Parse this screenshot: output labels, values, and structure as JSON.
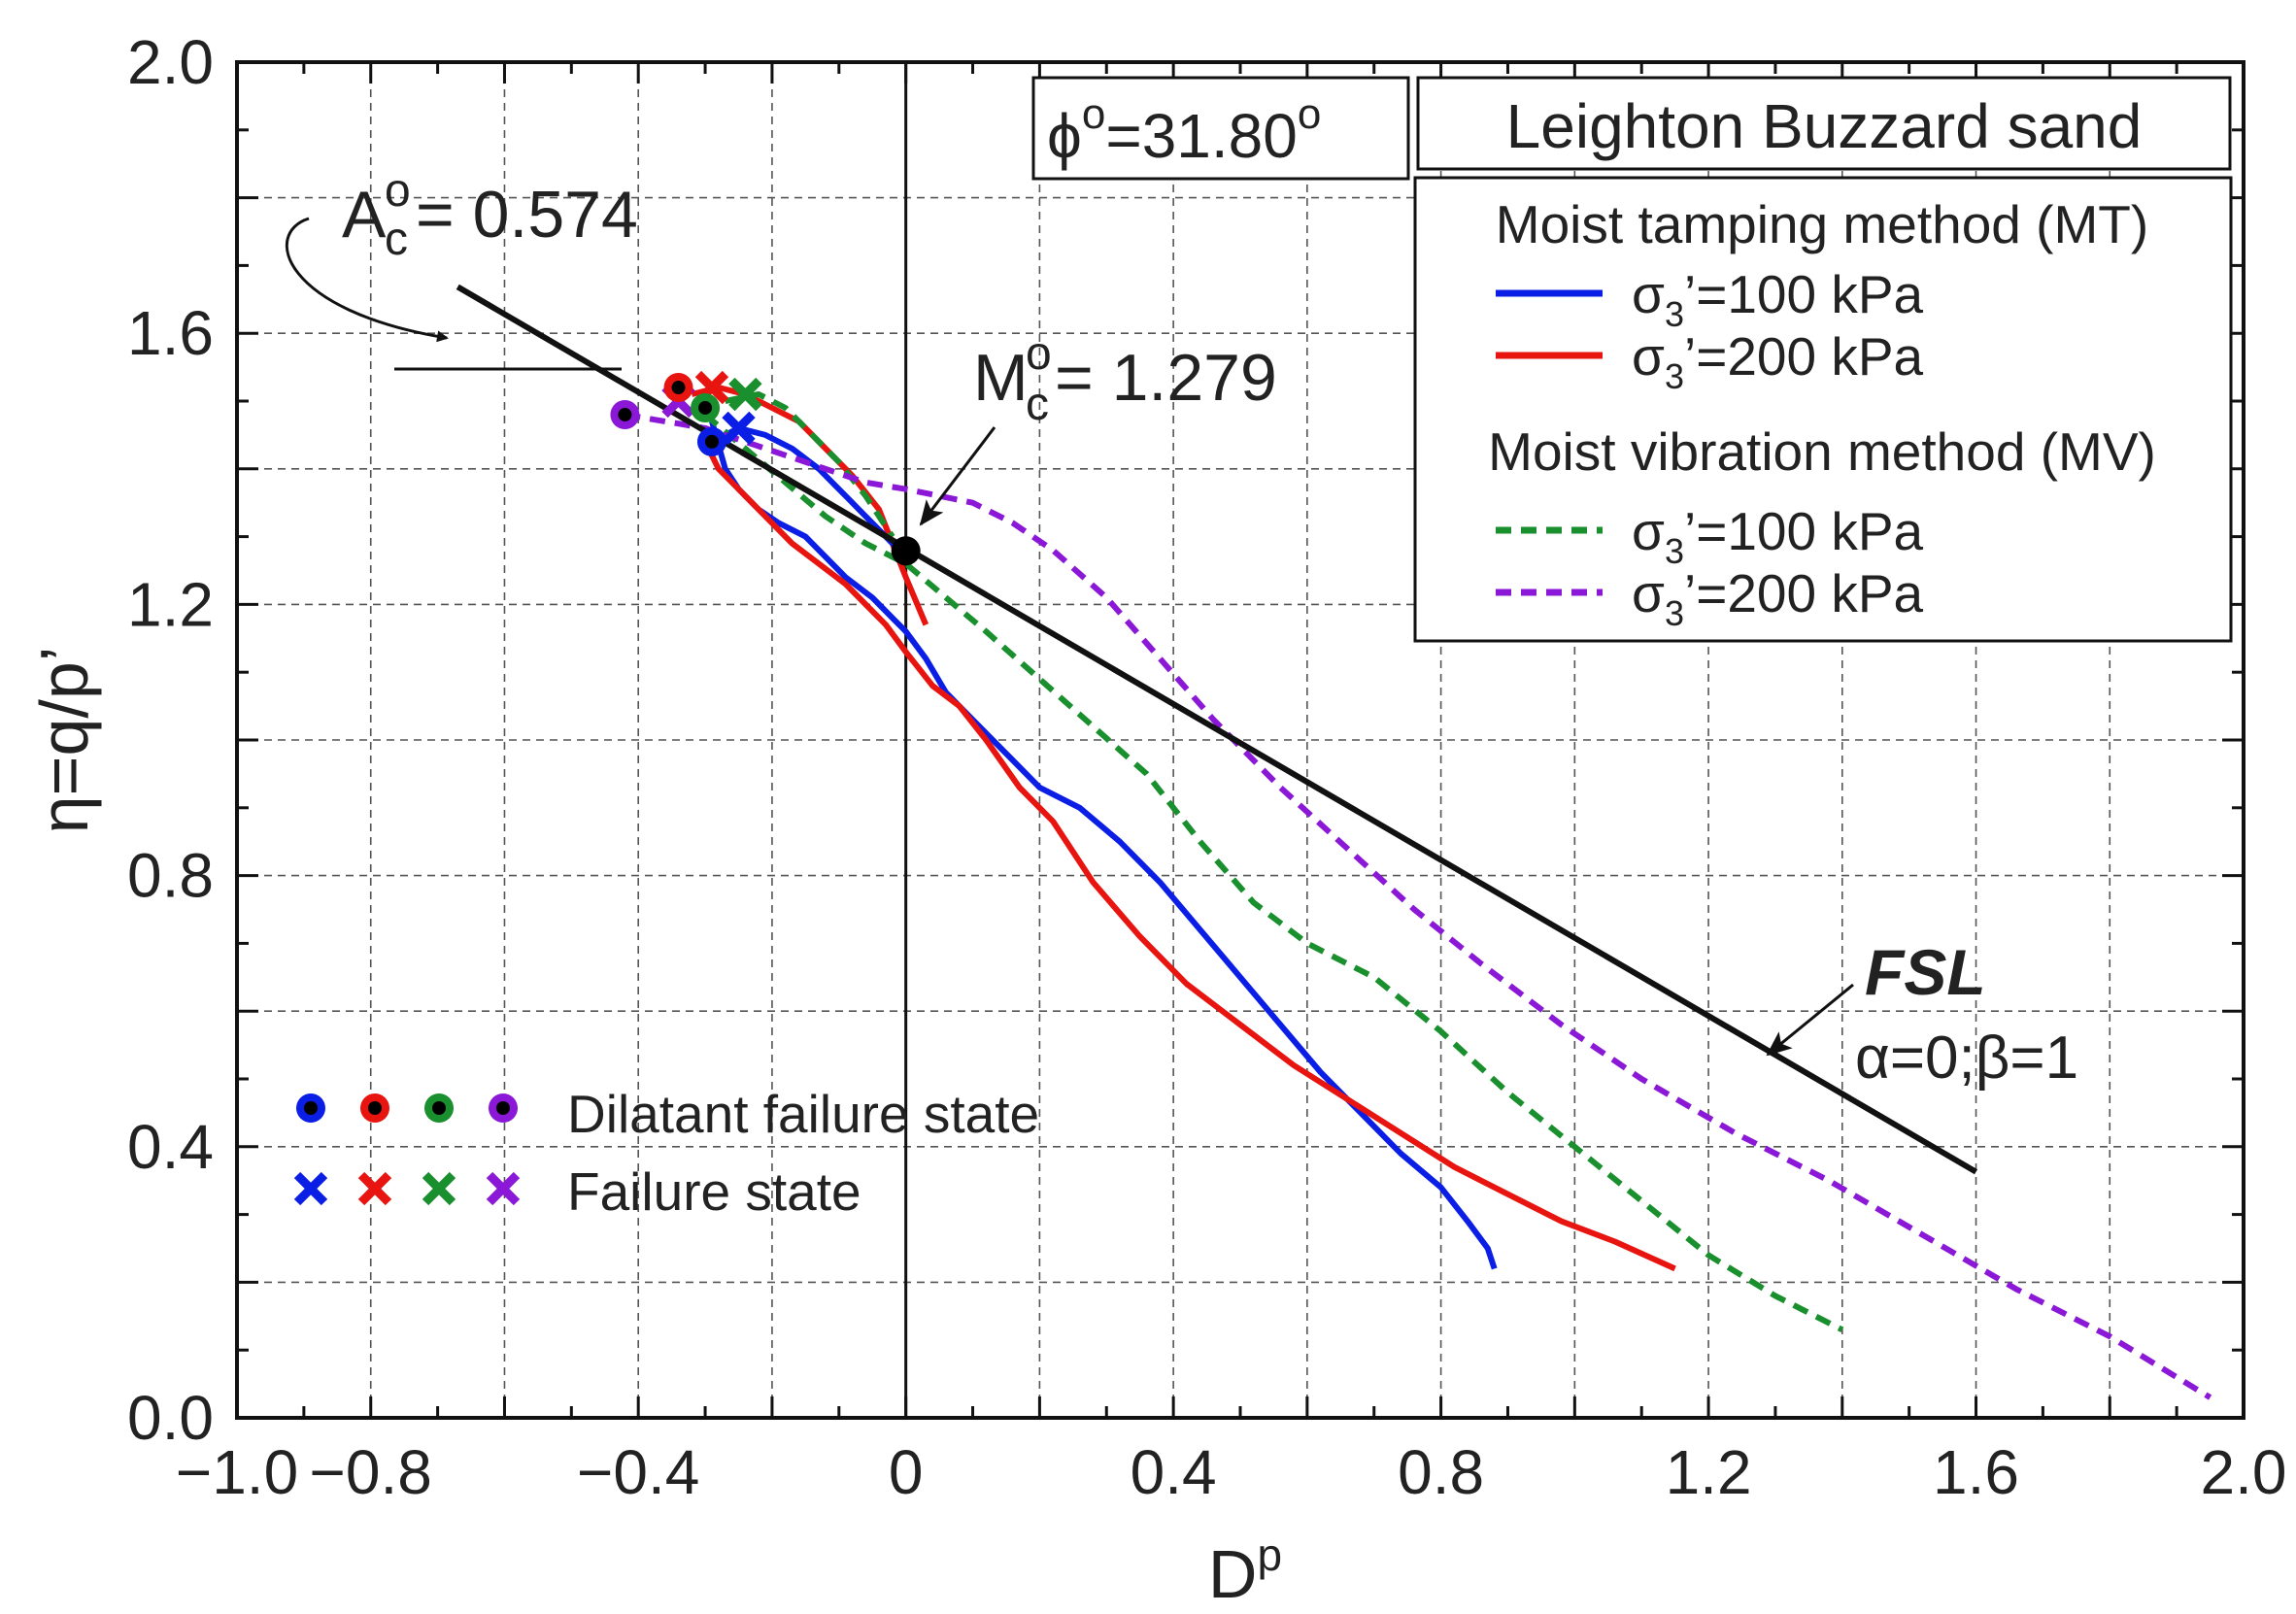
{
  "chart_data": {
    "type": "line",
    "xlabel": "D",
    "xlabel_sup": "p",
    "ylabel": "η=q/p’",
    "xlim": [
      -1.0,
      2.0
    ],
    "ylim": [
      0.0,
      2.0
    ],
    "x_ticks": [
      {
        "value": -1.0,
        "label": "−1.0"
      },
      {
        "value": -0.8,
        "label": "−0.8"
      },
      {
        "value": -0.4,
        "label": "−0.4"
      },
      {
        "value": 0.0,
        "label": "0"
      },
      {
        "value": 0.4,
        "label": "0.4"
      },
      {
        "value": 0.8,
        "label": "0.8"
      },
      {
        "value": 1.2,
        "label": "1.2"
      },
      {
        "value": 1.6,
        "label": "1.6"
      },
      {
        "value": 2.0,
        "label": "2.0"
      }
    ],
    "y_ticks": [
      {
        "value": 0.0,
        "label": "0.0"
      },
      {
        "value": 0.4,
        "label": "0.4"
      },
      {
        "value": 0.8,
        "label": "0.8"
      },
      {
        "value": 1.2,
        "label": "1.2"
      },
      {
        "value": 1.6,
        "label": "1.6"
      },
      {
        "value": 2.0,
        "label": "2.0"
      }
    ],
    "grid": true,
    "phi_box": {
      "prefix": "ϕ",
      "sup1": "o",
      "mid": "=31.80",
      "sup2": "o"
    },
    "title_box": "Leighton Buzzard sand",
    "legend": {
      "group1_title": "Moist tamping method (MT)",
      "group2_title": "Moist vibration method (MV)",
      "sigma_prefix": "σ",
      "sigma_sub": "3",
      "entries": [
        {
          "label": "’=100 kPa",
          "color": "#0a1ee6",
          "dashed": false
        },
        {
          "label": "’=200 kPa",
          "color": "#e8140f",
          "dashed": false
        },
        {
          "label": "’=100 kPa",
          "color": "#1a8f2e",
          "dashed": true
        },
        {
          "label": "’=200 kPa",
          "color": "#8a18d6",
          "dashed": true
        }
      ]
    },
    "fsl": {
      "x": [
        -0.67,
        1.6
      ],
      "y": [
        1.6685,
        0.3629
      ],
      "label": "FSL",
      "params": "α=0;β=1"
    },
    "annotation_A": {
      "prefix": "A",
      "sup": "o",
      "sub": "c",
      "value": "= 0.574"
    },
    "annotation_M": {
      "prefix": "M",
      "sup": "o",
      "sub": "c",
      "value": " = 1.279"
    },
    "critical_point": {
      "x": 0.0,
      "y": 1.279
    },
    "series": [
      {
        "name": "MT σ3’=100 kPa",
        "color": "#0a1ee6",
        "dashed": false,
        "x": [
          -0.29,
          -0.27,
          -0.25,
          -0.22,
          -0.19,
          -0.15,
          -0.12,
          -0.09,
          -0.05,
          -0.02,
          0.0,
          0.03,
          0.06,
          0.1,
          0.15,
          0.2,
          0.26,
          0.32,
          0.38,
          0.44,
          0.5,
          0.56,
          0.62,
          0.68,
          0.74,
          0.8,
          0.84,
          0.87,
          0.88
        ],
        "y": [
          1.47,
          1.4,
          1.37,
          1.34,
          1.32,
          1.3,
          1.27,
          1.24,
          1.21,
          1.18,
          1.16,
          1.12,
          1.07,
          1.03,
          0.98,
          0.93,
          0.9,
          0.85,
          0.79,
          0.72,
          0.65,
          0.58,
          0.51,
          0.45,
          0.39,
          0.34,
          0.29,
          0.25,
          0.22
        ]
      },
      {
        "name": "MT σ3’=200 kPa",
        "color": "#e8140f",
        "dashed": false,
        "x": [
          -0.3,
          -0.28,
          -0.25,
          -0.21,
          -0.17,
          -0.13,
          -0.09,
          -0.06,
          -0.03,
          0.0,
          0.04,
          0.08,
          0.12,
          0.17,
          0.22,
          0.28,
          0.35,
          0.42,
          0.5,
          0.58,
          0.66,
          0.74,
          0.82,
          0.9,
          0.98,
          1.06,
          1.15
        ],
        "y": [
          1.44,
          1.4,
          1.37,
          1.33,
          1.29,
          1.26,
          1.23,
          1.2,
          1.17,
          1.13,
          1.08,
          1.05,
          1.0,
          0.93,
          0.88,
          0.79,
          0.71,
          0.64,
          0.58,
          0.52,
          0.47,
          0.42,
          0.37,
          0.33,
          0.29,
          0.26,
          0.22
        ]
      },
      {
        "name": "MT σ3’=200 kPa (pre-failure branch)",
        "color": "#e8140f",
        "dashed": false,
        "x": [
          -0.32,
          -0.28,
          -0.24,
          -0.2,
          -0.16,
          -0.12,
          -0.08,
          -0.04,
          -0.02,
          0.0,
          0.03
        ],
        "y": [
          1.51,
          1.52,
          1.51,
          1.49,
          1.47,
          1.43,
          1.39,
          1.34,
          1.29,
          1.24,
          1.17
        ]
      },
      {
        "name": "MT σ3’=100 kPa (pre-failure branch)",
        "color": "#0a1ee6",
        "dashed": false,
        "x": [
          -0.29,
          -0.25,
          -0.21,
          -0.17,
          -0.13,
          -0.09,
          -0.06,
          -0.03,
          -0.01
        ],
        "y": [
          1.44,
          1.46,
          1.45,
          1.43,
          1.4,
          1.36,
          1.33,
          1.3,
          1.28
        ]
      },
      {
        "name": "MV σ3’=100 kPa",
        "color": "#1a8f2e",
        "dashed": true,
        "x": [
          -0.3,
          -0.24,
          -0.18,
          -0.12,
          -0.06,
          0.0,
          0.06,
          0.12,
          0.2,
          0.28,
          0.36,
          0.44,
          0.52,
          0.6,
          0.7,
          0.8,
          0.9,
          1.0,
          1.1,
          1.2,
          1.3,
          1.4
        ],
        "y": [
          1.48,
          1.43,
          1.38,
          1.33,
          1.29,
          1.26,
          1.21,
          1.16,
          1.09,
          1.02,
          0.95,
          0.85,
          0.76,
          0.7,
          0.65,
          0.57,
          0.48,
          0.4,
          0.32,
          0.24,
          0.18,
          0.13
        ]
      },
      {
        "name": "MV σ3’=100 kPa (pre-failure branch)",
        "color": "#1a8f2e",
        "dashed": true,
        "x": [
          -0.27,
          -0.22,
          -0.18,
          -0.14,
          -0.1,
          -0.06,
          -0.02
        ],
        "y": [
          1.5,
          1.51,
          1.49,
          1.45,
          1.41,
          1.36,
          1.3
        ]
      },
      {
        "name": "MV σ3’=200 kPa",
        "color": "#8a18d6",
        "dashed": true,
        "x": [
          -0.42,
          -0.36,
          -0.3,
          -0.24,
          -0.18,
          -0.12,
          -0.06,
          0.0,
          0.05,
          0.1,
          0.16,
          0.22,
          0.3,
          0.38,
          0.46,
          0.56,
          0.66,
          0.76,
          0.86,
          0.98,
          1.1,
          1.24,
          1.38,
          1.52,
          1.66,
          1.8,
          1.95
        ],
        "y": [
          1.48,
          1.47,
          1.46,
          1.44,
          1.42,
          1.4,
          1.38,
          1.37,
          1.36,
          1.35,
          1.32,
          1.28,
          1.21,
          1.12,
          1.03,
          0.93,
          0.84,
          0.75,
          0.67,
          0.58,
          0.5,
          0.42,
          0.35,
          0.27,
          0.19,
          0.12,
          0.03
        ]
      }
    ],
    "dilatant_points": [
      {
        "x": -0.29,
        "y": 1.44,
        "color": "#0a1ee6"
      },
      {
        "x": -0.34,
        "y": 1.52,
        "color": "#e8140f"
      },
      {
        "x": -0.3,
        "y": 1.49,
        "color": "#1a8f2e"
      },
      {
        "x": -0.42,
        "y": 1.48,
        "color": "#8a18d6"
      }
    ],
    "failure_points": [
      {
        "x": -0.25,
        "y": 1.46,
        "color": "#0a1ee6"
      },
      {
        "x": -0.29,
        "y": 1.52,
        "color": "#e8140f"
      },
      {
        "x": -0.24,
        "y": 1.51,
        "color": "#1a8f2e"
      },
      {
        "x": -0.34,
        "y": 1.5,
        "color": "#8a18d6"
      }
    ],
    "marker_legend": {
      "dilatant_label": "Dilatant failure state",
      "failure_label": "Failure state",
      "colors": [
        "#0a1ee6",
        "#e8140f",
        "#1a8f2e",
        "#8a18d6"
      ]
    }
  }
}
